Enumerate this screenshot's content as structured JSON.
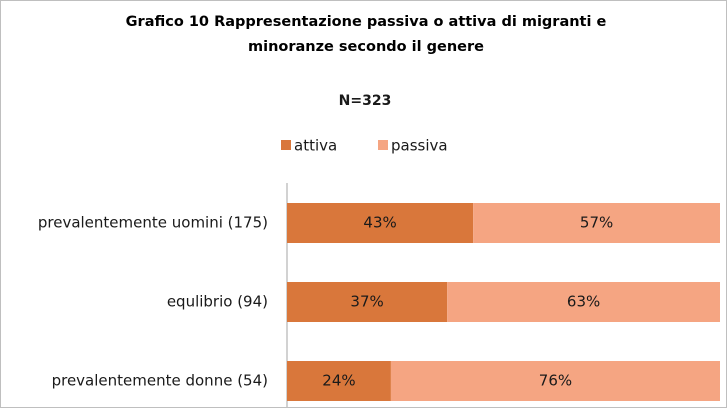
{
  "chart_data": {
    "type": "stacked_bar_horizontal",
    "title": "Grafico 10 Rappresentazione passiva o attiva di migranti e minoranze secondo il genere",
    "subtitle": "N=323",
    "categories": [
      "prevalentemente uomini (175)",
      "equlibrio (94)",
      "prevalentemente donne (54)"
    ],
    "series": [
      {
        "name": "attiva",
        "color": "#d9773b",
        "values": [
          43,
          37,
          24
        ],
        "value_labels": [
          "43%",
          "37%",
          "24%"
        ]
      },
      {
        "name": "passiva",
        "color": "#f5a582",
        "values": [
          57,
          63,
          76
        ],
        "value_labels": [
          "57%",
          "63%",
          "76%"
        ]
      }
    ],
    "xlim": [
      0,
      100
    ],
    "legend": "top"
  }
}
